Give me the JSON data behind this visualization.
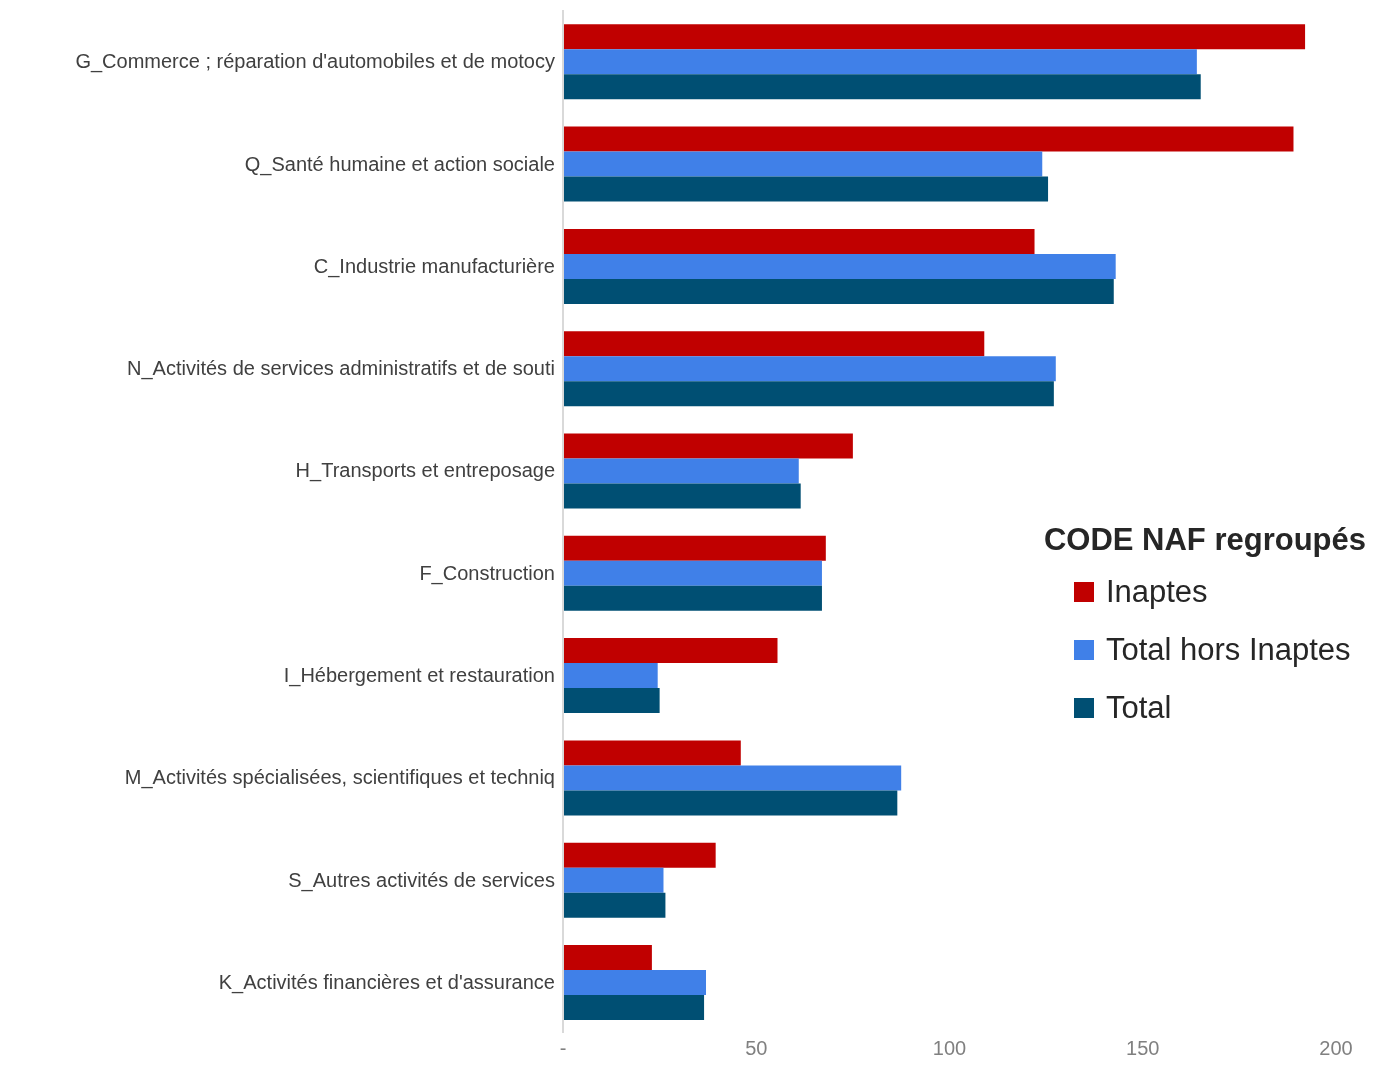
{
  "chart_data": {
    "type": "bar",
    "orientation": "horizontal",
    "legend_title": "CODE NAF regroupés",
    "legend": "right",
    "grid": false,
    "categories": [
      "G_Commerce ; réparation d'automobiles et de motocy",
      "Q_Santé humaine et action sociale",
      "C_Industrie manufacturière",
      "N_Activités de services administratifs et de souti",
      "H_Transports et entreposage",
      "F_Construction",
      "I_Hébergement et restauration",
      "M_Activités spécialisées, scientifiques et techniq",
      "S_Autres activités de services",
      "K_Activités financières et d'assurance"
    ],
    "series": [
      {
        "name": "Inaptes",
        "color": "#c00000",
        "values": [
          192,
          189,
          122,
          109,
          75,
          68,
          55.5,
          46,
          39.5,
          23
        ]
      },
      {
        "name": "Total hors Inaptes",
        "color": "#4080e8",
        "values": [
          164,
          124,
          143,
          127.5,
          61,
          67,
          24.5,
          87.5,
          26,
          37
        ]
      },
      {
        "name": "Total",
        "color": "#004f73",
        "values": [
          165,
          125.5,
          142.5,
          127,
          61.5,
          67,
          25,
          86.5,
          26.5,
          36.5
        ]
      }
    ],
    "xlim": [
      0,
      200
    ],
    "xticks": [
      {
        "value": 0,
        "label": "-"
      },
      50,
      100,
      150,
      200
    ]
  }
}
